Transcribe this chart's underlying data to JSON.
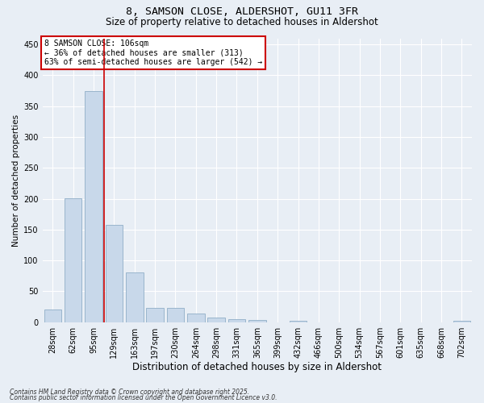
{
  "title1": "8, SAMSON CLOSE, ALDERSHOT, GU11 3FR",
  "title2": "Size of property relative to detached houses in Aldershot",
  "xlabel": "Distribution of detached houses by size in Aldershot",
  "ylabel": "Number of detached properties",
  "categories": [
    "28sqm",
    "62sqm",
    "95sqm",
    "129sqm",
    "163sqm",
    "197sqm",
    "230sqm",
    "264sqm",
    "298sqm",
    "331sqm",
    "365sqm",
    "399sqm",
    "432sqm",
    "466sqm",
    "500sqm",
    "534sqm",
    "567sqm",
    "601sqm",
    "635sqm",
    "668sqm",
    "702sqm"
  ],
  "values": [
    20,
    201,
    375,
    158,
    80,
    23,
    23,
    14,
    8,
    5,
    3,
    0,
    2,
    0,
    0,
    0,
    0,
    0,
    0,
    0,
    2
  ],
  "bar_color": "#c8d8ea",
  "bar_edge_color": "#9ab5cc",
  "vline_pos": 2.5,
  "vline_color": "#cc0000",
  "annotation_line1": "8 SAMSON CLOSE: 106sqm",
  "annotation_line2": "← 36% of detached houses are smaller (313)",
  "annotation_line3": "63% of semi-detached houses are larger (542) →",
  "annotation_box_facecolor": "#ffffff",
  "annotation_box_edgecolor": "#cc0000",
  "ylim": [
    0,
    460
  ],
  "yticks": [
    0,
    50,
    100,
    150,
    200,
    250,
    300,
    350,
    400,
    450
  ],
  "footer1": "Contains HM Land Registry data © Crown copyright and database right 2025.",
  "footer2": "Contains public sector information licensed under the Open Government Licence v3.0.",
  "bg_color": "#e8eef5",
  "grid_color": "#ffffff",
  "title1_fontsize": 9.5,
  "title2_fontsize": 8.5,
  "ylabel_fontsize": 7.5,
  "xlabel_fontsize": 8.5,
  "tick_fontsize": 7,
  "annot_fontsize": 7,
  "footer_fontsize": 5.5
}
